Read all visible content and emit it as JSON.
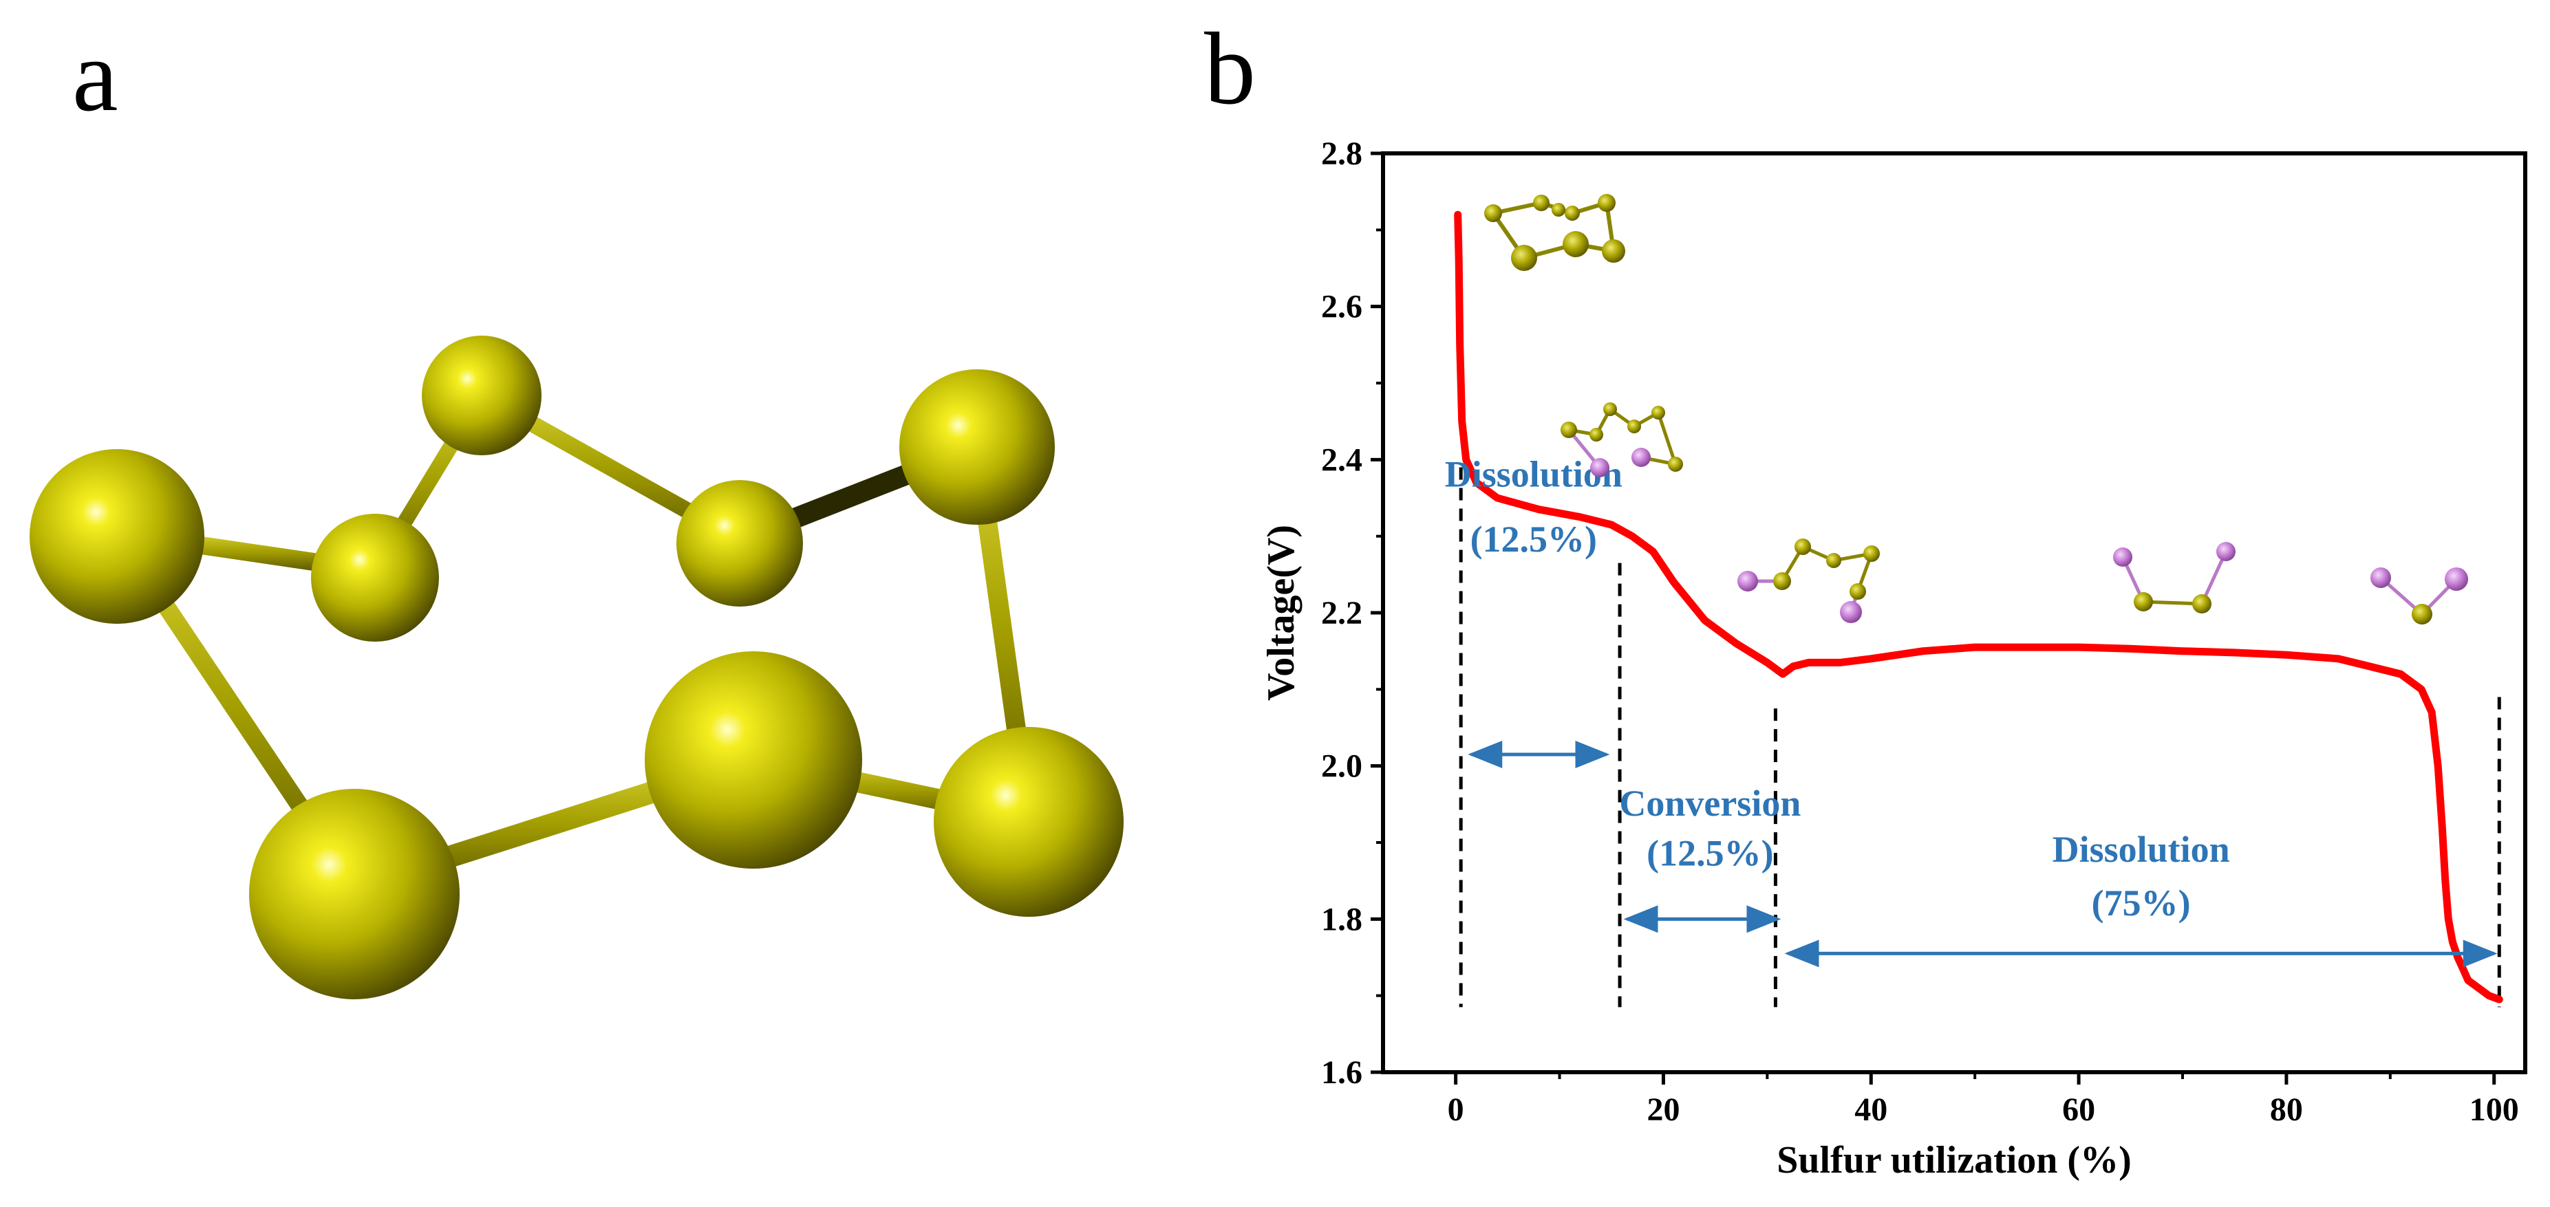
{
  "panels": {
    "a": "a",
    "b": "b"
  },
  "colors": {
    "curve": "#ff0000",
    "annotation": "#2e75b6",
    "sulfur_atom": "#b5b000",
    "lithium_atom": "#c77fd6",
    "axis": "#000000"
  },
  "chart_data": {
    "type": "line",
    "title": "",
    "xlabel": "Sulfur utilization (%)",
    "ylabel": "Voltage(V)",
    "xlim": [
      -7,
      103
    ],
    "ylim": [
      1.6,
      2.8
    ],
    "xticks": [
      0,
      20,
      40,
      60,
      80,
      100
    ],
    "yticks": [
      1.6,
      1.8,
      2.0,
      2.2,
      2.4,
      2.6,
      2.8
    ],
    "xtick_labels": [
      "0",
      "20",
      "40",
      "60",
      "80",
      "100"
    ],
    "ytick_labels": [
      "1.6",
      "1.8",
      "2.0",
      "2.2",
      "2.4",
      "2.6",
      "2.8"
    ],
    "grid": false,
    "series": [
      {
        "color": "#ff0000",
        "x": [
          0.2,
          0.3,
          0.4,
          0.6,
          1.0,
          2.0,
          4.0,
          8.0,
          12.0,
          15.0,
          17.0,
          19.0,
          21.0,
          24.0,
          27.0,
          30.0,
          31.5,
          32.5,
          34.0,
          37.0,
          40.0,
          45.0,
          50.0,
          55.0,
          60.0,
          65.0,
          70.0,
          75.0,
          80.0,
          85.0,
          88.0,
          91.0,
          93.0,
          94.0,
          94.6,
          95.0,
          95.3,
          95.6,
          96.0,
          96.5,
          97.0,
          97.5,
          98.5,
          99.5,
          100.5
        ],
        "y": [
          2.72,
          2.66,
          2.55,
          2.45,
          2.4,
          2.37,
          2.35,
          2.335,
          2.325,
          2.315,
          2.3,
          2.28,
          2.24,
          2.19,
          2.16,
          2.135,
          2.12,
          2.13,
          2.135,
          2.135,
          2.14,
          2.15,
          2.155,
          2.155,
          2.155,
          2.153,
          2.15,
          2.148,
          2.145,
          2.14,
          2.13,
          2.12,
          2.1,
          2.07,
          2.0,
          1.92,
          1.85,
          1.8,
          1.77,
          1.75,
          1.735,
          1.72,
          1.71,
          1.7,
          1.695
        ]
      }
    ],
    "boundaries": [
      0.5,
      15.8,
      30.8,
      100.5
    ],
    "regions": [
      {
        "name": "Dissolution",
        "percent": "(12.5%)",
        "from": 1.5,
        "to": 14.5,
        "y": 2.015
      },
      {
        "name": "Conversion",
        "percent": "(12.5%)",
        "from": 16.5,
        "to": 31.0,
        "y": 1.8
      },
      {
        "name": "Dissolution",
        "percent": "(75%)",
        "from": 32.0,
        "to": 100.0,
        "y": 1.755
      }
    ]
  }
}
